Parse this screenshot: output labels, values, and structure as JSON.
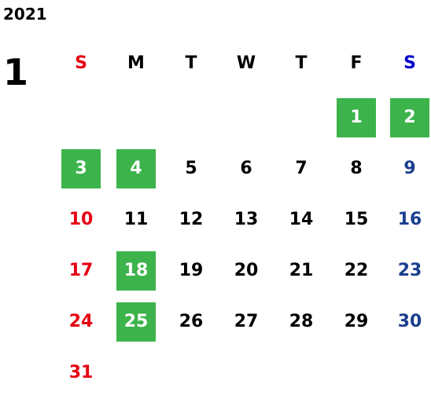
{
  "year": "2021",
  "month": "1",
  "colors": {
    "weekday": "#000000",
    "sunday": "#e60012",
    "saturday_header": "#0000cc",
    "saturday": "#1a3f8f",
    "holiday_bg": "#3cb44b",
    "holiday_text": "#ffffff"
  },
  "weekdays": [
    "S",
    "M",
    "T",
    "W",
    "T",
    "F",
    "S"
  ],
  "weeks": [
    [
      null,
      null,
      null,
      null,
      null,
      {
        "label": "1",
        "holiday": true
      },
      {
        "label": "2",
        "holiday": true
      }
    ],
    [
      {
        "label": "3",
        "holiday": true
      },
      {
        "label": "4",
        "holiday": true
      },
      {
        "label": "5"
      },
      {
        "label": "6"
      },
      {
        "label": "7"
      },
      {
        "label": "8"
      },
      {
        "label": "9"
      }
    ],
    [
      {
        "label": "10"
      },
      {
        "label": "11"
      },
      {
        "label": "12"
      },
      {
        "label": "13"
      },
      {
        "label": "14"
      },
      {
        "label": "15"
      },
      {
        "label": "16"
      }
    ],
    [
      {
        "label": "17"
      },
      {
        "label": "18",
        "holiday": true
      },
      {
        "label": "19"
      },
      {
        "label": "20"
      },
      {
        "label": "21"
      },
      {
        "label": "22"
      },
      {
        "label": "23"
      }
    ],
    [
      {
        "label": "24"
      },
      {
        "label": "25",
        "holiday": true
      },
      {
        "label": "26"
      },
      {
        "label": "27"
      },
      {
        "label": "28"
      },
      {
        "label": "29"
      },
      {
        "label": "30"
      }
    ],
    [
      {
        "label": "31"
      },
      null,
      null,
      null,
      null,
      null,
      null
    ]
  ]
}
